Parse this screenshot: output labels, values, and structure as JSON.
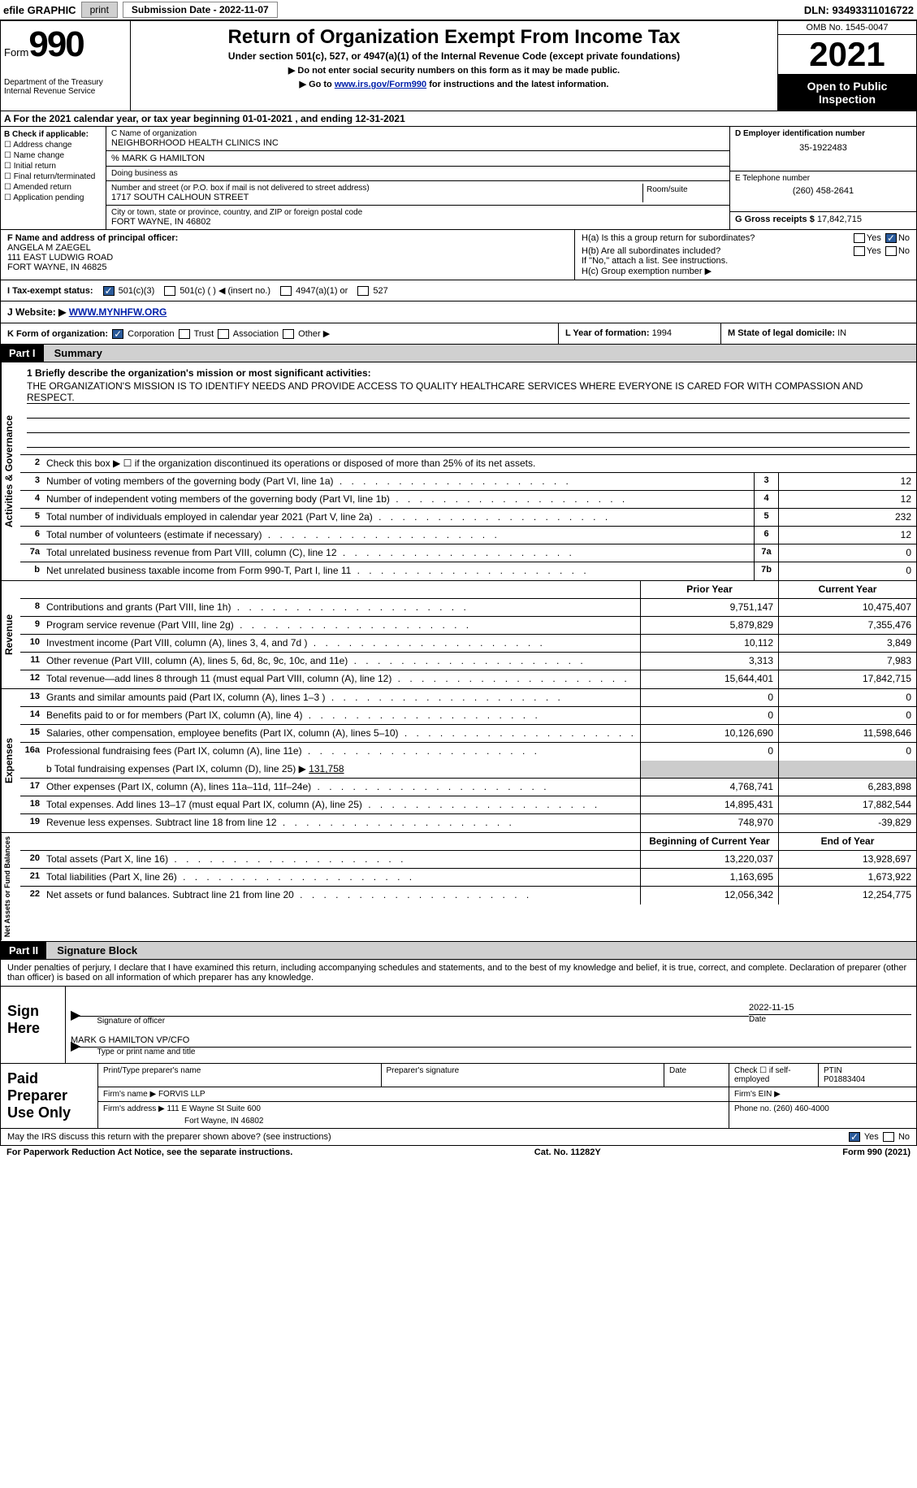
{
  "top_bar": {
    "efile_label": "efile GRAPHIC",
    "print_btn": "print",
    "submission_label": "Submission Date - 2022-11-07",
    "dln_label": "DLN: 93493311016722"
  },
  "header": {
    "form_word": "Form",
    "form_number": "990",
    "dept": "Department of the Treasury",
    "irs": "Internal Revenue Service",
    "title": "Return of Organization Exempt From Income Tax",
    "subtitle": "Under section 501(c), 527, or 4947(a)(1) of the Internal Revenue Code (except private foundations)",
    "instr1": "▶ Do not enter social security numbers on this form as it may be made public.",
    "instr2_pre": "▶ Go to ",
    "instr2_link": "www.irs.gov/Form990",
    "instr2_post": " for instructions and the latest information.",
    "omb": "OMB No. 1545-0047",
    "year": "2021",
    "open": "Open to Public Inspection"
  },
  "row_a": "A For the 2021 calendar year, or tax year beginning 01-01-2021   , and ending 12-31-2021",
  "col_b": {
    "header": "B Check if applicable:",
    "items": [
      "Address change",
      "Name change",
      "Initial return",
      "Final return/terminated",
      "Amended return",
      "Application pending"
    ]
  },
  "col_c": {
    "name_label": "C Name of organization",
    "name": "NEIGHBORHOOD HEALTH CLINICS INC",
    "care_of": "% MARK G HAMILTON",
    "dba_label": "Doing business as",
    "street_label": "Number and street (or P.O. box if mail is not delivered to street address)",
    "street": "1717 SOUTH CALHOUN STREET",
    "room_label": "Room/suite",
    "city_label": "City or town, state or province, country, and ZIP or foreign postal code",
    "city": "FORT WAYNE, IN  46802"
  },
  "col_d": {
    "ein_label": "D Employer identification number",
    "ein": "35-1922483",
    "phone_label": "E Telephone number",
    "phone": "(260) 458-2641",
    "gross_label": "G Gross receipts $",
    "gross": "17,842,715"
  },
  "row_f": {
    "label": "F  Name and address of principal officer:",
    "name": "ANGELA M ZAEGEL",
    "street": "111 EAST LUDWIG ROAD",
    "city": "FORT WAYNE, IN  46825"
  },
  "row_h": {
    "a_label": "H(a)  Is this a group return for subordinates?",
    "b_label": "H(b)  Are all subordinates included?",
    "b_note": "If \"No,\" attach a list. See instructions.",
    "c_label": "H(c)  Group exemption number ▶",
    "yes": "Yes",
    "no": "No"
  },
  "row_i": {
    "label": "I   Tax-exempt status:",
    "opt1": "501(c)(3)",
    "opt2": "501(c) (  ) ◀ (insert no.)",
    "opt3": "4947(a)(1) or",
    "opt4": "527"
  },
  "row_j": {
    "label": "J  Website: ▶",
    "value": "WWW.MYNHFW.ORG"
  },
  "row_k": {
    "label": "K Form of organization:",
    "opts": [
      "Corporation",
      "Trust",
      "Association",
      "Other ▶"
    ],
    "l_label": "L Year of formation: ",
    "l_value": "1994",
    "m_label": "M State of legal domicile: ",
    "m_value": "IN"
  },
  "part1": {
    "num": "Part I",
    "title": "Summary"
  },
  "activities": {
    "side": "Activities & Governance",
    "line1_label": "1   Briefly describe the organization's mission or most significant activities:",
    "line1_text": "THE ORGANIZATION'S MISSION IS TO IDENTIFY NEEDS AND PROVIDE ACCESS TO QUALITY HEALTHCARE SERVICES WHERE EVERYONE IS CARED FOR WITH COMPASSION AND RESPECT.",
    "line2": "Check this box ▶ ☐  if the organization discontinued its operations or disposed of more than 25% of its net assets.",
    "rows": [
      {
        "n": "3",
        "d": "Number of voting members of the governing body (Part VI, line 1a)",
        "box": "3",
        "v": "12"
      },
      {
        "n": "4",
        "d": "Number of independent voting members of the governing body (Part VI, line 1b)",
        "box": "4",
        "v": "12"
      },
      {
        "n": "5",
        "d": "Total number of individuals employed in calendar year 2021 (Part V, line 2a)",
        "box": "5",
        "v": "232"
      },
      {
        "n": "6",
        "d": "Total number of volunteers (estimate if necessary)",
        "box": "6",
        "v": "12"
      },
      {
        "n": "7a",
        "d": "Total unrelated business revenue from Part VIII, column (C), line 12",
        "box": "7a",
        "v": "0"
      },
      {
        "n": "b",
        "d": "Net unrelated business taxable income from Form 990-T, Part I, line 11",
        "box": "7b",
        "v": "0"
      }
    ]
  },
  "revenue": {
    "side": "Revenue",
    "header_prior": "Prior Year",
    "header_current": "Current Year",
    "rows": [
      {
        "n": "8",
        "d": "Contributions and grants (Part VIII, line 1h)",
        "p": "9,751,147",
        "c": "10,475,407"
      },
      {
        "n": "9",
        "d": "Program service revenue (Part VIII, line 2g)",
        "p": "5,879,829",
        "c": "7,355,476"
      },
      {
        "n": "10",
        "d": "Investment income (Part VIII, column (A), lines 3, 4, and 7d )",
        "p": "10,112",
        "c": "3,849"
      },
      {
        "n": "11",
        "d": "Other revenue (Part VIII, column (A), lines 5, 6d, 8c, 9c, 10c, and 11e)",
        "p": "3,313",
        "c": "7,983"
      },
      {
        "n": "12",
        "d": "Total revenue—add lines 8 through 11 (must equal Part VIII, column (A), line 12)",
        "p": "15,644,401",
        "c": "17,842,715"
      }
    ]
  },
  "expenses": {
    "side": "Expenses",
    "rows": [
      {
        "n": "13",
        "d": "Grants and similar amounts paid (Part IX, column (A), lines 1–3 )",
        "p": "0",
        "c": "0"
      },
      {
        "n": "14",
        "d": "Benefits paid to or for members (Part IX, column (A), line 4)",
        "p": "0",
        "c": "0"
      },
      {
        "n": "15",
        "d": "Salaries, other compensation, employee benefits (Part IX, column (A), lines 5–10)",
        "p": "10,126,690",
        "c": "11,598,646"
      },
      {
        "n": "16a",
        "d": "Professional fundraising fees (Part IX, column (A), line 11e)",
        "p": "0",
        "c": "0"
      }
    ],
    "line_b": "b  Total fundraising expenses (Part IX, column (D), line 25) ▶",
    "line_b_val": "131,758",
    "rows2": [
      {
        "n": "17",
        "d": "Other expenses (Part IX, column (A), lines 11a–11d, 11f–24e)",
        "p": "4,768,741",
        "c": "6,283,898"
      },
      {
        "n": "18",
        "d": "Total expenses. Add lines 13–17 (must equal Part IX, column (A), line 25)",
        "p": "14,895,431",
        "c": "17,882,544"
      },
      {
        "n": "19",
        "d": "Revenue less expenses. Subtract line 18 from line 12",
        "p": "748,970",
        "c": "-39,829"
      }
    ]
  },
  "net_assets": {
    "side": "Net Assets or Fund Balances",
    "header_begin": "Beginning of Current Year",
    "header_end": "End of Year",
    "rows": [
      {
        "n": "20",
        "d": "Total assets (Part X, line 16)",
        "p": "13,220,037",
        "c": "13,928,697"
      },
      {
        "n": "21",
        "d": "Total liabilities (Part X, line 26)",
        "p": "1,163,695",
        "c": "1,673,922"
      },
      {
        "n": "22",
        "d": "Net assets or fund balances. Subtract line 21 from line 20",
        "p": "12,056,342",
        "c": "12,254,775"
      }
    ]
  },
  "part2": {
    "num": "Part II",
    "title": "Signature Block"
  },
  "sig": {
    "declaration": "Under penalties of perjury, I declare that I have examined this return, including accompanying schedules and statements, and to the best of my knowledge and belief, it is true, correct, and complete. Declaration of preparer (other than officer) is based on all information of which preparer has any knowledge.",
    "sign_here": "Sign Here",
    "sig_officer": "Signature of officer",
    "date_label": "Date",
    "date_val": "2022-11-15",
    "name_title": "MARK G HAMILTON VP/CFO",
    "type_label": "Type or print name and title"
  },
  "paid": {
    "label": "Paid Preparer Use Only",
    "r1": {
      "c1": "Print/Type preparer's name",
      "c2": "Preparer's signature",
      "c3": "Date",
      "c4_label": "Check ☐ if self-employed",
      "c5_label": "PTIN",
      "c5_val": "P01883404"
    },
    "r2": {
      "label": "Firm's name    ▶",
      "val": "FORVIS LLP",
      "ein_label": "Firm's EIN ▶"
    },
    "r3": {
      "label": "Firm's address ▶",
      "val": "111 E Wayne St Suite 600",
      "city": "Fort Wayne, IN  46802",
      "phone_label": "Phone no.",
      "phone_val": "(260) 460-4000"
    }
  },
  "footer": {
    "discuss": "May the IRS discuss this return with the preparer shown above? (see instructions)",
    "yes": "Yes",
    "no": "No",
    "paperwork": "For Paperwork Reduction Act Notice, see the separate instructions.",
    "cat": "Cat. No. 11282Y",
    "form": "Form 990 (2021)"
  }
}
